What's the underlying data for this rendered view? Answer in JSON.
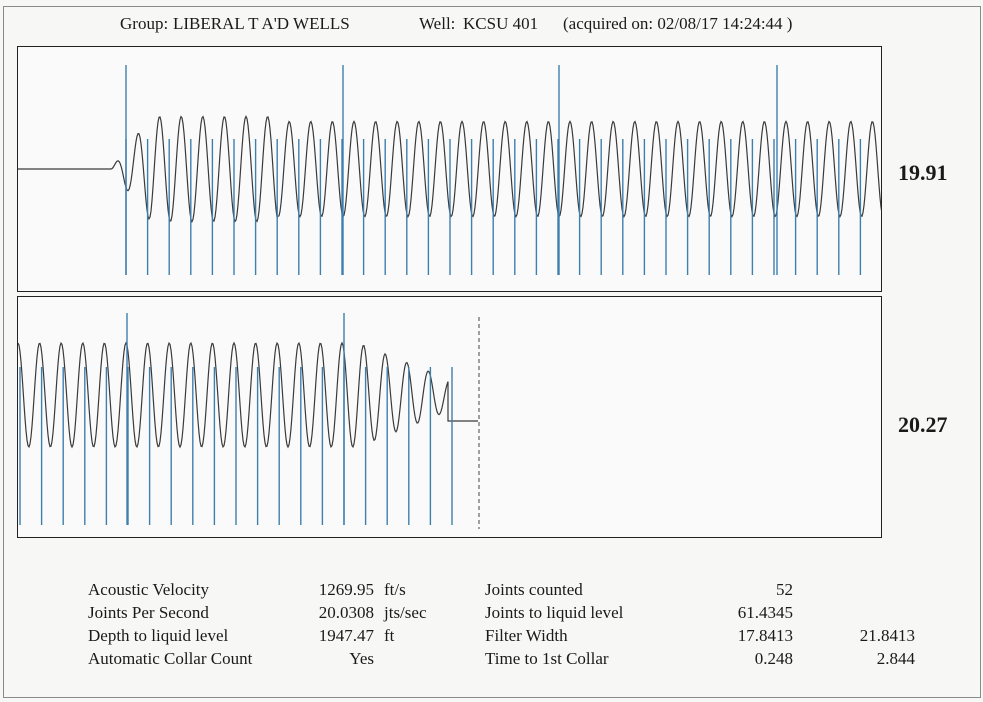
{
  "header": {
    "group_label": "Group:",
    "group_name": "LIBERAL T A'D WELLS",
    "well_label": "Well:",
    "well_name": "KCSU 401",
    "acquired_text": "(acquired on: 02/08/17 14:24:44 )"
  },
  "panels": [
    {
      "side_value": "19.91"
    },
    {
      "side_value": "20.27"
    }
  ],
  "colors": {
    "waveform": "#3a3a3a",
    "collar_marker": "#3f7fae",
    "border": "#222222"
  },
  "stats_left": [
    {
      "label": "Acoustic Velocity",
      "value": "1269.95",
      "unit": "ft/s"
    },
    {
      "label": "Joints Per Second",
      "value": "20.0308",
      "unit": "jts/sec"
    },
    {
      "label": "Depth to liquid level",
      "value": "1947.47",
      "unit": "ft"
    },
    {
      "label": "Automatic Collar Count",
      "value": "Yes",
      "unit": ""
    }
  ],
  "stats_right": [
    {
      "label": "Joints counted",
      "value1": "52",
      "value2": ""
    },
    {
      "label": "Joints to liquid level",
      "value1": "61.4345",
      "value2": ""
    },
    {
      "label": "Filter Width",
      "value1": "17.8413",
      "value2": "21.8413"
    },
    {
      "label": "Time to 1st Collar",
      "value1": "0.248",
      "value2": "2.844"
    }
  ]
}
